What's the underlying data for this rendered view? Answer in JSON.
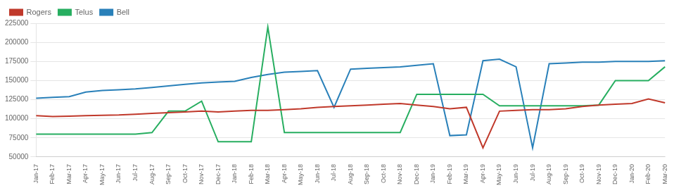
{
  "chart_data": {
    "type": "line",
    "categories": [
      "Jan-17",
      "Feb-17",
      "Mar-17",
      "Apr-17",
      "May-17",
      "Jun-17",
      "Jul-17",
      "Aug-17",
      "Sep-17",
      "Oct-17",
      "Nov-17",
      "Dec-17",
      "Jan-18",
      "Feb-18",
      "Mar-18",
      "Apr-18",
      "May-18",
      "Jun-18",
      "Jul-18",
      "Aug-18",
      "Sep-18",
      "Oct-18",
      "Nov-18",
      "Dec-18",
      "Jan-19",
      "Feb-19",
      "Mar-19",
      "Apr-19",
      "May-19",
      "Jun-19",
      "Jul-19",
      "Aug-19",
      "Sep-19",
      "Oct-19",
      "Nov-19",
      "Dec-19",
      "Jan-20",
      "Feb-20",
      "Mar-20"
    ],
    "series": [
      {
        "name": "Rogers",
        "color": "#c0392b",
        "values": [
          104000,
          103000,
          103500,
          104000,
          104500,
          105000,
          106000,
          107000,
          108000,
          109000,
          110000,
          109000,
          110000,
          111000,
          111000,
          112000,
          113000,
          115000,
          116000,
          117000,
          118000,
          119000,
          120000,
          118000,
          116000,
          113000,
          115000,
          62000,
          110000,
          111000,
          112000,
          112000,
          113000,
          116000,
          118000,
          119000,
          120000,
          126000,
          121000
        ]
      },
      {
        "name": "Telus",
        "color": "#27ae60",
        "values": [
          80000,
          80000,
          80000,
          80000,
          80000,
          80000,
          80000,
          82000,
          110000,
          110000,
          123000,
          70000,
          70000,
          70000,
          220000,
          82000,
          82000,
          82000,
          82000,
          82000,
          82000,
          82000,
          82000,
          132000,
          132000,
          132000,
          132000,
          132000,
          117000,
          117000,
          117000,
          117000,
          117000,
          117000,
          118000,
          150000,
          150000,
          150000,
          168000
        ]
      },
      {
        "name": "Bell",
        "color": "#2980b9",
        "values": [
          127000,
          128000,
          129000,
          135000,
          137000,
          138000,
          139000,
          141000,
          143000,
          145000,
          147000,
          148000,
          149000,
          154000,
          158000,
          161000,
          162000,
          163000,
          115000,
          165000,
          166000,
          167000,
          168000,
          170000,
          172000,
          78000,
          79000,
          176000,
          178000,
          168000,
          62000,
          172000,
          173000,
          174000,
          174000,
          175000,
          175000,
          175000,
          176000
        ]
      }
    ],
    "ylim": [
      50000,
      225000
    ],
    "yticks": [
      50000,
      75000,
      100000,
      125000,
      150000,
      175000,
      200000,
      225000
    ],
    "grid": true,
    "legend": "upper left"
  }
}
